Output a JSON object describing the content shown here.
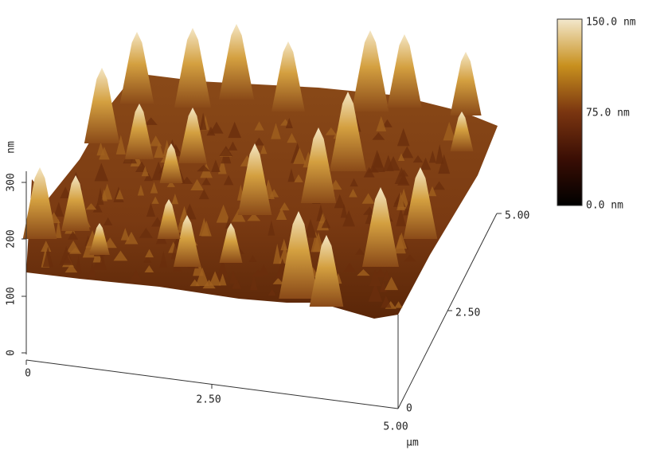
{
  "z_axis": {
    "label": "nm",
    "ticks": [
      "0",
      "100",
      "200",
      "300"
    ]
  },
  "x_axis": {
    "ticks": [
      "0",
      "2.50",
      "5.00"
    ],
    "unit": "μm"
  },
  "y_axis": {
    "ticks": [
      "0",
      "2.50",
      "5.00"
    ]
  },
  "colorbar": {
    "labels": [
      "150.0 nm",
      "75.0 nm",
      "0.0 nm"
    ]
  }
}
